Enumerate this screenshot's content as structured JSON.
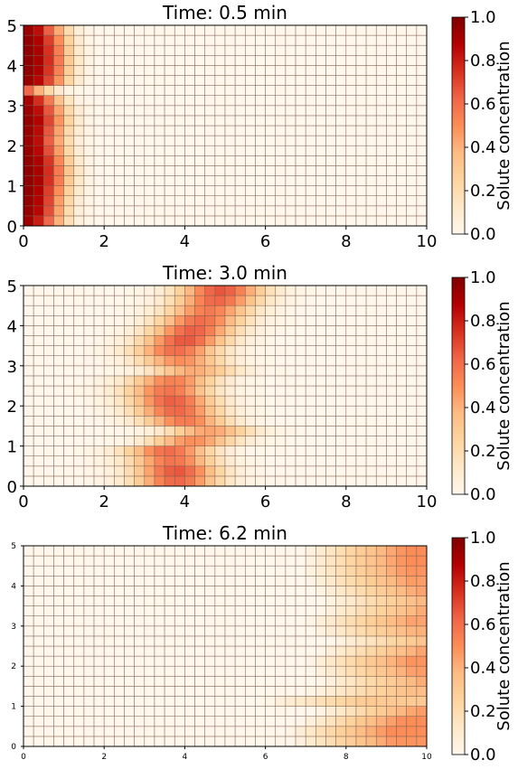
{
  "chart_data": [
    {
      "type": "heatmap",
      "title": "Time: 0.5 min",
      "xlim": [
        0,
        10
      ],
      "ylim": [
        0,
        5
      ],
      "x_ticks": [
        "0",
        "2",
        "4",
        "6",
        "8",
        "10"
      ],
      "y_ticks": [
        "0",
        "1",
        "2",
        "3",
        "4",
        "5"
      ],
      "grid": true,
      "n_cols": 40,
      "n_rows": 20,
      "values": [
        [
          0.92,
          0.8,
          0.62,
          0.4,
          0.18,
          0.06,
          0.02,
          0.0
        ],
        [
          0.94,
          0.86,
          0.68,
          0.44,
          0.2,
          0.07,
          0.02,
          0.0
        ],
        [
          0.95,
          0.87,
          0.7,
          0.46,
          0.22,
          0.08,
          0.02,
          0.0
        ],
        [
          0.96,
          0.88,
          0.72,
          0.5,
          0.26,
          0.1,
          0.03,
          0.0
        ],
        [
          0.96,
          0.9,
          0.75,
          0.55,
          0.3,
          0.12,
          0.03,
          0.0
        ],
        [
          0.96,
          0.9,
          0.76,
          0.56,
          0.32,
          0.13,
          0.04,
          0.0
        ],
        [
          0.95,
          0.89,
          0.74,
          0.52,
          0.28,
          0.11,
          0.03,
          0.0
        ],
        [
          0.94,
          0.86,
          0.68,
          0.46,
          0.22,
          0.08,
          0.02,
          0.0
        ],
        [
          0.93,
          0.84,
          0.64,
          0.42,
          0.2,
          0.07,
          0.02,
          0.0
        ],
        [
          0.94,
          0.85,
          0.66,
          0.44,
          0.21,
          0.08,
          0.02,
          0.0
        ],
        [
          0.95,
          0.87,
          0.7,
          0.48,
          0.24,
          0.09,
          0.02,
          0.0
        ],
        [
          0.93,
          0.84,
          0.66,
          0.44,
          0.21,
          0.08,
          0.02,
          0.0
        ],
        [
          0.9,
          0.76,
          0.56,
          0.34,
          0.14,
          0.04,
          0.01,
          0.0
        ],
        [
          0.62,
          0.4,
          0.22,
          0.1,
          0.03,
          0.01,
          0.0,
          0.0
        ],
        [
          0.94,
          0.86,
          0.7,
          0.48,
          0.24,
          0.09,
          0.02,
          0.0
        ],
        [
          0.96,
          0.89,
          0.74,
          0.54,
          0.28,
          0.11,
          0.03,
          0.0
        ],
        [
          0.96,
          0.9,
          0.76,
          0.56,
          0.3,
          0.12,
          0.03,
          0.0
        ],
        [
          0.96,
          0.9,
          0.75,
          0.55,
          0.29,
          0.11,
          0.03,
          0.0
        ],
        [
          0.95,
          0.88,
          0.72,
          0.5,
          0.25,
          0.09,
          0.02,
          0.0
        ],
        [
          0.93,
          0.84,
          0.64,
          0.42,
          0.2,
          0.07,
          0.02,
          0.0
        ]
      ]
    },
    {
      "type": "heatmap",
      "title": "Time: 3.0 min",
      "xlim": [
        0,
        10
      ],
      "ylim": [
        0,
        5
      ],
      "x_ticks": [
        "0",
        "2",
        "4",
        "6",
        "8",
        "10"
      ],
      "y_ticks": [
        "0",
        "1",
        "2",
        "3",
        "4",
        "5"
      ],
      "grid": true,
      "n_cols": 40,
      "n_rows": 20,
      "pattern": "analytic"
    },
    {
      "type": "heatmap",
      "title": "Time: 6.2 min",
      "xlim": [
        0,
        10
      ],
      "ylim": [
        0,
        5
      ],
      "x_ticks": [
        "0",
        "2",
        "4",
        "6",
        "8",
        "10"
      ],
      "y_ticks": [
        "0",
        "1",
        "2",
        "3",
        "4",
        "5"
      ],
      "grid": true,
      "n_cols": 40,
      "n_rows": 20,
      "pattern": "analytic"
    }
  ],
  "colorbar": {
    "label": "Solute concentration",
    "ticks": [
      "0.0",
      "0.2",
      "0.4",
      "0.6",
      "0.8",
      "1.0"
    ],
    "range": [
      0,
      1
    ],
    "colormap": "OrRd",
    "stops": [
      "#fff7ec",
      "#fee8c8",
      "#fdd49e",
      "#fdbb84",
      "#fc8d59",
      "#ef6548",
      "#d7301f",
      "#b30000",
      "#7f0000"
    ]
  }
}
